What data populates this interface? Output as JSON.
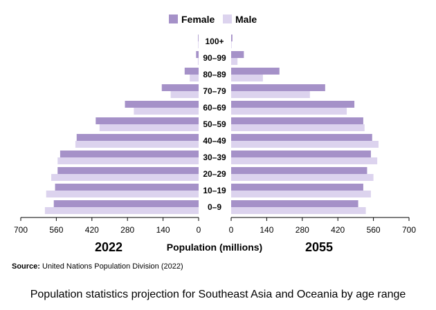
{
  "colors": {
    "female": "#a591c8",
    "male": "#dcd3ee",
    "axis": "#000000"
  },
  "chart_data": {
    "type": "bar",
    "orientation": "horizontal-pyramid",
    "categories": [
      "100+",
      "90–99",
      "80–89",
      "70–79",
      "60–69",
      "50–59",
      "40–49",
      "30–39",
      "20–29",
      "10–19",
      "0–9"
    ],
    "legend": [
      "Female",
      "Male"
    ],
    "panels": [
      {
        "year": "2022",
        "series": [
          {
            "name": "Female",
            "values": [
              1,
              10,
              55,
              145,
              290,
              405,
              480,
              545,
              555,
              565,
              570
            ]
          },
          {
            "name": "Male",
            "values": [
              0.5,
              3,
              35,
              110,
              255,
              390,
              485,
              555,
              580,
              600,
              605
            ]
          }
        ]
      },
      {
        "year": "2055",
        "series": [
          {
            "name": "Female",
            "values": [
              5,
              50,
              190,
              370,
              485,
              520,
              555,
              550,
              535,
              520,
              500
            ]
          },
          {
            "name": "Male",
            "values": [
              2,
              25,
              125,
              310,
              455,
              525,
              580,
              575,
              560,
              550,
              530
            ]
          }
        ]
      }
    ],
    "xlim": [
      0,
      700
    ],
    "ticks": [
      0,
      140,
      280,
      420,
      560,
      700
    ],
    "xlabel": "Population (millions)"
  },
  "source_label": "Source:",
  "source_text": " United Nations Population Division (2022)",
  "caption": "Population statistics projection for Southeast Asia and Oceania by age range"
}
